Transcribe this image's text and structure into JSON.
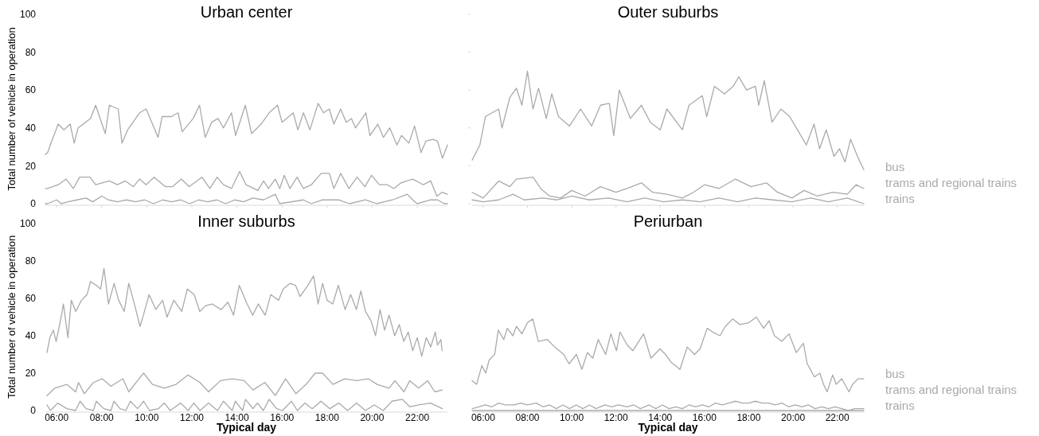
{
  "chart_data": [
    {
      "type": "line",
      "title": "Urban center",
      "ylabel": "Total number of vehicle in operation",
      "xlim": [
        5.5,
        23.34
      ],
      "xticks": [
        {
          "value": 6,
          "label": null
        },
        {
          "value": 8,
          "label": null
        },
        {
          "value": 10,
          "label": null
        },
        {
          "value": 12,
          "label": null
        },
        {
          "value": 14,
          "label": null
        },
        {
          "value": 16,
          "label": null
        },
        {
          "value": 18,
          "label": null
        },
        {
          "value": 20,
          "label": null
        },
        {
          "value": 22,
          "label": null
        }
      ],
      "ylim": [
        0,
        100
      ],
      "yticks": [
        0,
        20,
        40,
        60,
        80,
        100
      ],
      "tick_labels": "y",
      "series": [
        {
          "color": "#aaaaaa",
          "x": [
            5.5,
            5.6,
            5.78,
            6.07,
            6.32,
            6.6,
            6.78,
            6.95,
            7.5,
            7.73,
            8.16,
            8.34,
            8.73,
            8.9,
            9.15,
            9.68,
            9.97,
            10.22,
            10.5,
            10.68,
            11.1,
            11.39,
            11.57,
            12.06,
            12.34,
            12.59,
            12.88,
            13.16,
            13.4,
            13.76,
            13.94,
            14.37,
            14.65,
            15.07,
            15.43,
            15.8,
            16.0,
            16.5,
            16.7,
            16.95,
            17.24,
            17.6,
            17.84,
            18.1,
            18.3,
            18.6,
            18.85,
            19.08,
            19.26,
            19.72,
            19.9,
            20.25,
            20.5,
            20.78,
            21.1,
            21.3,
            21.63,
            21.88,
            22.17,
            22.38,
            22.7,
            22.9,
            23.12,
            23.34
          ],
          "values": [
            26,
            27,
            33,
            42,
            39,
            42,
            32,
            40,
            45,
            52,
            37,
            52,
            50,
            32,
            39,
            48,
            50,
            43,
            35,
            46,
            46,
            48,
            38,
            45,
            52,
            35,
            43,
            45,
            40,
            48,
            36,
            52,
            37,
            42,
            48,
            52,
            43,
            48,
            39,
            48,
            39,
            53,
            48,
            50,
            42,
            50,
            43,
            45,
            40,
            48,
            36,
            42,
            35,
            40,
            31,
            36,
            32,
            41,
            27,
            33,
            34,
            33,
            24,
            31
          ]
        },
        {
          "color": "#aaaaaa",
          "x": [
            5.5,
            5.6,
            6.07,
            6.42,
            6.74,
            7.02,
            7.48,
            7.73,
            8.34,
            8.69,
            9.05,
            9.4,
            9.68,
            9.97,
            10.32,
            10.82,
            11.15,
            11.53,
            11.88,
            12.45,
            12.8,
            13.12,
            13.4,
            13.76,
            14.12,
            14.4,
            14.93,
            15.18,
            15.4,
            15.7,
            15.9,
            16.1,
            16.35,
            16.67,
            16.95,
            17.3,
            17.74,
            18.1,
            18.3,
            18.6,
            18.97,
            19.33,
            19.68,
            19.97,
            20.32,
            20.68,
            20.96,
            21.28,
            21.8,
            22.27,
            22.6,
            22.87,
            23.1,
            23.34
          ],
          "values": [
            8,
            8,
            10,
            13,
            8,
            14,
            14,
            10,
            12,
            10,
            12,
            9,
            13,
            10,
            14,
            9,
            9,
            13,
            9,
            14,
            8,
            14,
            10,
            8,
            17,
            10,
            7,
            12,
            8,
            13,
            8,
            15,
            8,
            14,
            8,
            10,
            16,
            16,
            8,
            16,
            8,
            14,
            9,
            15,
            10,
            10,
            8,
            11,
            13,
            10,
            12,
            4,
            6,
            5
          ]
        },
        {
          "color": "#aaaaaa",
          "x": [
            5.5,
            5.6,
            6.0,
            6.2,
            6.5,
            6.9,
            7.3,
            7.6,
            8.0,
            8.3,
            8.7,
            9.1,
            9.5,
            9.9,
            10.3,
            10.7,
            11.1,
            11.5,
            11.9,
            12.3,
            12.7,
            13.1,
            13.5,
            13.9,
            14.3,
            14.7,
            15.18,
            15.7,
            15.9,
            16.95,
            17.3,
            17.8,
            18.5,
            19.0,
            19.7,
            20.2,
            20.9,
            21.56,
            21.8,
            22.0,
            22.6,
            22.9,
            23.2,
            23.34
          ],
          "values": [
            0,
            0,
            2,
            0,
            1,
            2,
            3,
            1,
            4,
            2,
            1,
            2,
            1,
            2,
            0,
            2,
            1,
            2,
            0,
            2,
            1,
            2,
            0,
            2,
            1,
            3,
            2,
            5,
            0,
            2,
            0,
            2,
            2,
            0,
            2,
            0,
            2,
            5,
            2,
            0,
            2,
            2,
            0,
            0
          ]
        }
      ]
    },
    {
      "type": "line",
      "title": "Outer suburbs",
      "xlim": [
        5.5,
        23.2
      ],
      "xticks": [
        {
          "value": 6,
          "label": null
        },
        {
          "value": 8,
          "label": null
        },
        {
          "value": 10,
          "label": null
        },
        {
          "value": 12,
          "label": null
        },
        {
          "value": 14,
          "label": null
        },
        {
          "value": 16,
          "label": null
        },
        {
          "value": 18,
          "label": null
        },
        {
          "value": 20,
          "label": null
        },
        {
          "value": 22,
          "label": null
        }
      ],
      "ylim": [
        0,
        100
      ],
      "yticks": [
        0,
        20,
        40,
        60,
        80,
        100
      ],
      "tick_labels": false,
      "series": [
        {
          "name": "bus",
          "color": "#aaaaaa",
          "x": [
            5.5,
            5.85,
            6.1,
            6.7,
            6.85,
            7.2,
            7.5,
            7.75,
            8.0,
            8.25,
            8.5,
            8.85,
            9.1,
            9.4,
            9.9,
            10.4,
            10.9,
            11.3,
            11.7,
            11.9,
            12.15,
            12.65,
            13.15,
            13.55,
            14.0,
            14.3,
            15.0,
            15.3,
            15.9,
            16.1,
            16.45,
            16.9,
            17.3,
            17.55,
            17.9,
            18.3,
            18.45,
            18.7,
            19.05,
            19.45,
            19.85,
            20.2,
            20.6,
            20.95,
            21.2,
            21.5,
            21.85,
            22.1,
            22.35,
            22.6,
            22.95,
            23.2
          ],
          "values": [
            23,
            31,
            46,
            50,
            40,
            56,
            61,
            52,
            70,
            50,
            61,
            45,
            58,
            46,
            41,
            50,
            41,
            52,
            53,
            36,
            60,
            45,
            52,
            43,
            39,
            50,
            39,
            52,
            57,
            46,
            62,
            58,
            62,
            67,
            60,
            62,
            52,
            65,
            43,
            50,
            46,
            39,
            31,
            42,
            29,
            39,
            25,
            29,
            22,
            34,
            24,
            18
          ]
        },
        {
          "name": "trams and regional trains",
          "color": "#aaaaaa",
          "x": [
            5.5,
            6.0,
            6.7,
            7.2,
            7.5,
            8.25,
            8.6,
            9.0,
            9.5,
            10.0,
            10.6,
            11.3,
            12.0,
            12.5,
            13.15,
            13.65,
            14.3,
            15.0,
            15.5,
            16.0,
            16.65,
            17.4,
            18.1,
            18.8,
            19.3,
            19.95,
            20.5,
            21.1,
            21.8,
            22.45,
            22.85,
            23.2
          ],
          "values": [
            6,
            3,
            12,
            9,
            13,
            14,
            8,
            4,
            3,
            7,
            4,
            9,
            6,
            8,
            11,
            6,
            5,
            3,
            6,
            10,
            8,
            13,
            9,
            11,
            6,
            3,
            7,
            4,
            6,
            5,
            10,
            8
          ]
        },
        {
          "name": "trains",
          "color": "#aaaaaa",
          "x": [
            5.5,
            6.0,
            6.7,
            7.35,
            7.85,
            8.7,
            9.35,
            10.0,
            10.8,
            11.65,
            12.5,
            13.3,
            14.15,
            15.0,
            15.8,
            16.65,
            17.5,
            18.3,
            19.1,
            19.95,
            20.8,
            21.6,
            22.45,
            23.2
          ],
          "values": [
            2,
            1,
            2,
            5,
            2,
            3,
            2,
            4,
            2,
            3,
            1,
            3,
            1,
            2,
            1,
            3,
            1,
            3,
            2,
            1,
            3,
            1,
            3,
            0
          ]
        }
      ]
    },
    {
      "type": "line",
      "title": "Inner suburbs",
      "xlabel": "Typical day",
      "ylabel": "Total number of vehicle in operation",
      "xlim": [
        5.5,
        23.34
      ],
      "xticks": [
        {
          "value": 6,
          "label": "06:00"
        },
        {
          "value": 8,
          "label": "08:00"
        },
        {
          "value": 10,
          "label": "10:00"
        },
        {
          "value": 12,
          "label": "12:00"
        },
        {
          "value": 14,
          "label": "14:00"
        },
        {
          "value": 16,
          "label": "16:00"
        },
        {
          "value": 18,
          "label": "18:00"
        },
        {
          "value": 20,
          "label": "20:00"
        },
        {
          "value": 22,
          "label": "22:00"
        }
      ],
      "ylim": [
        0,
        100
      ],
      "yticks": [
        0,
        20,
        40,
        60,
        80,
        100
      ],
      "series": [
        {
          "color": "#aaaaaa",
          "x": [
            5.57,
            5.7,
            5.85,
            5.98,
            6.2,
            6.3,
            6.5,
            6.65,
            6.85,
            7.1,
            7.35,
            7.5,
            7.75,
            7.95,
            8.1,
            8.3,
            8.55,
            8.75,
            9.0,
            9.2,
            9.45,
            9.7,
            9.85,
            10.1,
            10.4,
            10.7,
            10.9,
            11.2,
            11.55,
            11.8,
            12.1,
            12.35,
            12.6,
            12.9,
            13.3,
            13.6,
            13.85,
            14.1,
            14.45,
            14.7,
            14.95,
            15.25,
            15.5,
            15.85,
            16.05,
            16.35,
            16.6,
            16.8,
            17.15,
            17.4,
            17.6,
            17.8,
            18.0,
            18.25,
            18.5,
            18.8,
            19.05,
            19.3,
            19.5,
            19.7,
            19.95,
            20.15,
            20.35,
            20.55,
            20.75,
            21.0,
            21.2,
            21.4,
            21.6,
            21.8,
            22.0,
            22.2,
            22.4,
            22.6,
            22.8,
            22.9,
            23.05,
            23.1
          ],
          "values": [
            31,
            39,
            43,
            37,
            50,
            57,
            39,
            59,
            53,
            59,
            62,
            69,
            67,
            65,
            76,
            57,
            68,
            59,
            53,
            68,
            57,
            45,
            51,
            62,
            54,
            59,
            50,
            59,
            53,
            65,
            62,
            53,
            56,
            57,
            54,
            58,
            51,
            67,
            57,
            51,
            57,
            51,
            62,
            59,
            65,
            68,
            67,
            61,
            67,
            72,
            57,
            68,
            59,
            57,
            67,
            54,
            62,
            54,
            64,
            53,
            48,
            40,
            54,
            43,
            51,
            40,
            46,
            37,
            42,
            32,
            39,
            29,
            39,
            34,
            42,
            35,
            38,
            32
          ]
        },
        {
          "color": "#aaaaaa",
          "x": [
            5.57,
            5.92,
            6.45,
            6.84,
            6.97,
            7.23,
            7.63,
            8.02,
            8.41,
            8.94,
            9.2,
            9.59,
            9.86,
            10.25,
            10.78,
            11.3,
            11.83,
            12.36,
            12.74,
            13.27,
            13.79,
            14.32,
            14.71,
            15.24,
            15.7,
            16.16,
            16.62,
            17.07,
            17.47,
            17.8,
            18.26,
            18.78,
            19.31,
            19.83,
            20.22,
            20.75,
            21.01,
            21.41,
            21.67,
            22.06,
            22.46,
            22.78,
            23.11
          ],
          "values": [
            8,
            12,
            14,
            10,
            15,
            9,
            15,
            17,
            13,
            17,
            10,
            16,
            20,
            14,
            12,
            14,
            19,
            15,
            10,
            16,
            17,
            16,
            11,
            15,
            8,
            17,
            9,
            14,
            20,
            20,
            14,
            17,
            16,
            17,
            14,
            12,
            16,
            10,
            16,
            12,
            16,
            10,
            11
          ]
        },
        {
          "color": "#aaaaaa",
          "x": [
            5.57,
            5.72,
            6.05,
            6.45,
            6.84,
            7.04,
            7.3,
            7.63,
            7.76,
            8.09,
            8.41,
            8.54,
            8.81,
            9.07,
            9.27,
            9.59,
            9.86,
            10.12,
            10.51,
            10.78,
            11.04,
            11.5,
            11.83,
            12.09,
            12.36,
            12.74,
            13.14,
            13.4,
            13.79,
            13.93,
            14.25,
            14.38,
            14.71,
            14.91,
            15.17,
            15.43,
            15.76,
            16.02,
            16.42,
            16.68,
            17.01,
            17.34,
            17.73,
            18.12,
            18.52,
            18.91,
            19.31,
            19.7,
            20.09,
            20.49,
            20.88,
            21.34,
            21.67,
            22.06,
            22.59,
            23.11
          ],
          "values": [
            3,
            0,
            4,
            1,
            0,
            5,
            1,
            0,
            5,
            1,
            0,
            5,
            1,
            0,
            5,
            1,
            5,
            0,
            1,
            4,
            0,
            4,
            0,
            4,
            0,
            4,
            0,
            5,
            0,
            5,
            0,
            6,
            1,
            4,
            0,
            6,
            1,
            0,
            5,
            0,
            4,
            1,
            5,
            1,
            4,
            0,
            4,
            0,
            3,
            0,
            5,
            6,
            2,
            3,
            4,
            1
          ]
        }
      ]
    },
    {
      "type": "line",
      "title": "Periurban",
      "xlabel": "Typical day",
      "xlim": [
        5.5,
        23.2
      ],
      "xticks": [
        {
          "value": 6,
          "label": "06:00"
        },
        {
          "value": 8,
          "label": "08:00"
        },
        {
          "value": 10,
          "label": "10:00"
        },
        {
          "value": 12,
          "label": "12:00"
        },
        {
          "value": 14,
          "label": "14:00"
        },
        {
          "value": 16,
          "label": "16:00"
        },
        {
          "value": 18,
          "label": "18:00"
        },
        {
          "value": 20,
          "label": "20:00"
        },
        {
          "value": 22,
          "label": "22:00"
        }
      ],
      "ylim": [
        0,
        100
      ],
      "tick_labels": "x",
      "series": [
        {
          "name": "bus",
          "color": "#aaaaaa",
          "x": [
            5.5,
            5.7,
            5.94,
            6.11,
            6.27,
            6.52,
            6.68,
            6.93,
            7.09,
            7.34,
            7.5,
            7.75,
            8.0,
            8.24,
            8.49,
            8.9,
            9.23,
            9.64,
            9.88,
            10.21,
            10.46,
            10.71,
            10.95,
            11.2,
            11.53,
            11.77,
            12.02,
            12.18,
            12.51,
            12.76,
            13.25,
            13.58,
            13.99,
            14.24,
            14.48,
            14.89,
            15.22,
            15.55,
            15.8,
            16.12,
            16.37,
            16.7,
            16.94,
            17.27,
            17.6,
            18.01,
            18.34,
            18.67,
            18.92,
            19.16,
            19.49,
            19.82,
            20.15,
            20.47,
            20.64,
            20.97,
            21.21,
            21.38,
            21.54,
            21.79,
            21.95,
            22.2,
            22.53,
            22.69,
            22.94,
            23.2
          ],
          "values": [
            16,
            14,
            24,
            20,
            27,
            30,
            43,
            38,
            44,
            40,
            45,
            41,
            47,
            49,
            37,
            38,
            34,
            30,
            25,
            30,
            22,
            31,
            28,
            38,
            30,
            41,
            32,
            42,
            35,
            32,
            41,
            28,
            33,
            30,
            26,
            22,
            34,
            30,
            33,
            44,
            42,
            40,
            45,
            49,
            46,
            47,
            50,
            44,
            48,
            40,
            37,
            41,
            31,
            36,
            25,
            18,
            20,
            14,
            10,
            19,
            14,
            17,
            10,
            14,
            17,
            17
          ]
        },
        {
          "name": "trams and regional trains",
          "color": "#aaaaaa",
          "x": [
            5.5,
            5.8,
            6.1,
            6.4,
            6.7,
            7.0,
            7.4,
            7.7,
            8.0,
            8.4,
            8.7,
            9.0,
            9.3,
            9.6,
            9.9,
            10.2,
            10.5,
            10.8,
            11.1,
            11.5,
            11.8,
            12.1,
            12.5,
            12.8,
            13.1,
            13.5,
            13.8,
            14.1,
            14.4,
            14.7,
            15.0,
            15.3,
            15.6,
            15.9,
            16.2,
            16.5,
            16.8,
            17.1,
            17.4,
            17.7,
            18.0,
            18.3,
            18.6,
            18.9,
            19.2,
            19.5,
            19.8,
            20.1,
            20.4,
            20.7,
            21.0,
            21.3,
            21.6,
            21.9,
            22.2,
            22.5,
            22.8,
            23.2
          ],
          "values": [
            1,
            2,
            3,
            2,
            4,
            3,
            3,
            4,
            3,
            4,
            2,
            3,
            1,
            3,
            1,
            3,
            1,
            3,
            1,
            3,
            2,
            3,
            2,
            3,
            1,
            3,
            1,
            3,
            1,
            2,
            1,
            3,
            2,
            3,
            2,
            4,
            3,
            4,
            5,
            4,
            4,
            5,
            4,
            4,
            3,
            4,
            2,
            3,
            2,
            3,
            1,
            2,
            1,
            2,
            1,
            0,
            1,
            1
          ]
        },
        {
          "name": "trains",
          "color": "#aaaaaa",
          "x": [
            5.5,
            8.0,
            12.0,
            16.0,
            20.0,
            23.2
          ],
          "values": [
            0,
            0,
            0,
            0,
            0,
            0
          ]
        }
      ]
    }
  ]
}
